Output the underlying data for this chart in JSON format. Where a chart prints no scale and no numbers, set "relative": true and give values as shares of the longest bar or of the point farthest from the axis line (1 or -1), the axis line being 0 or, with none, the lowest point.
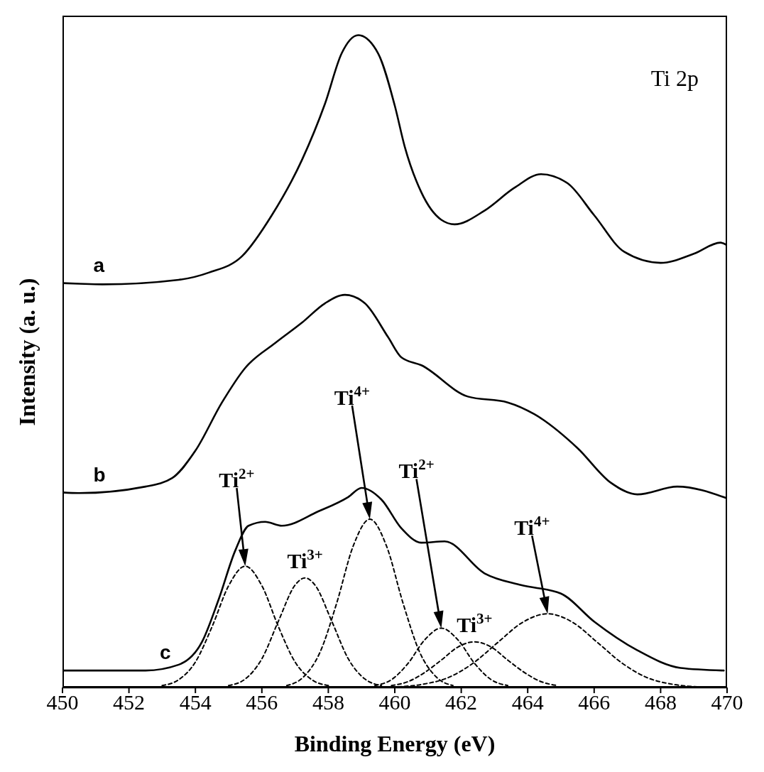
{
  "chart_data": {
    "type": "line",
    "relative": true,
    "xlabel": "Binding Energy (eV)",
    "ylabel": "Intensity (a. u.)",
    "xlim": [
      450,
      470
    ],
    "xticks": [
      450,
      452,
      454,
      456,
      458,
      460,
      462,
      464,
      466,
      468,
      470
    ],
    "marker": "none",
    "annotations": [
      "Ti 2p",
      "Ti$^{2+}$",
      {
        "text": "Ti$^{3+}$",
        "x": 457.3,
        "y": 0.168
      },
      "Ti$^{4+}$",
      "Ti$^{2+}$",
      {
        "text": "Ti$^{3+}$",
        "x": 462.4,
        "y": 0.07
      },
      "Ti$^{4+}$"
    ],
    "series": [
      {
        "name": "a",
        "color": "#000000",
        "x": [
          450,
          450.5,
          451.2,
          453.5,
          454.4,
          455.4,
          456.3,
          457.2,
          457.9,
          458.4,
          458.9,
          459.5,
          460.0,
          460.3,
          460.8,
          461.4,
          461.8,
          462.7,
          463.6,
          464.4,
          465.2,
          466.0,
          466.9,
          468.0,
          469.0,
          469.8,
          470.0
        ],
        "values": [
          0.62,
          0.619,
          0.618,
          0.625,
          0.636,
          0.661,
          0.724,
          0.808,
          0.895,
          0.972,
          1.0,
          0.972,
          0.892,
          0.829,
          0.759,
          0.717,
          0.71,
          0.731,
          0.766,
          0.787,
          0.773,
          0.724,
          0.668,
          0.651,
          0.665,
          0.682,
          0.678
        ]
      },
      {
        "name": "b",
        "color": "#000000",
        "x": [
          450,
          450.5,
          452.5,
          453.3,
          454.0,
          454.8,
          455.5,
          456.4,
          457.2,
          457.9,
          458.5,
          459.1,
          459.8,
          460.2,
          460.8,
          462.2,
          463.4,
          464.2,
          465.5,
          466.5,
          467.3,
          468.5,
          470.0
        ],
        "values": [
          0.299,
          0.298,
          0.308,
          0.321,
          0.363,
          0.437,
          0.49,
          0.528,
          0.559,
          0.589,
          0.602,
          0.589,
          0.537,
          0.506,
          0.494,
          0.446,
          0.437,
          0.419,
          0.367,
          0.314,
          0.296,
          0.308,
          0.29
        ]
      },
      {
        "name": "c",
        "color": "#000000",
        "x": [
          450,
          452.5,
          453.5,
          454.2,
          454.7,
          455.2,
          455.6,
          456.1,
          456.6,
          457.7,
          458.6,
          459.0,
          459.6,
          460.2,
          460.8,
          461.5,
          462.7,
          463.8,
          465.0,
          466.0,
          467.3,
          468.6,
          469.9
        ],
        "values": [
          0.026,
          0.026,
          0.035,
          0.07,
          0.135,
          0.21,
          0.248,
          0.254,
          0.248,
          0.27,
          0.292,
          0.306,
          0.288,
          0.244,
          0.222,
          0.224,
          0.175,
          0.157,
          0.144,
          0.101,
          0.057,
          0.03,
          0.026
        ]
      },
      {
        "color": "#000000",
        "line_style": "dashed",
        "x": [
          453.0,
          453.5,
          454.0,
          454.5,
          455.0,
          455.5,
          456.0,
          456.5,
          457.0,
          457.5,
          458.0
        ],
        "values": [
          0.003,
          0.012,
          0.039,
          0.093,
          0.156,
          0.186,
          0.156,
          0.093,
          0.039,
          0.012,
          0.003
        ]
      },
      {
        "color": "#000000",
        "line_style": "dashed",
        "x": [
          455.0,
          455.5,
          456.0,
          456.5,
          457.0,
          457.3,
          457.6,
          458.1,
          458.6,
          459.1,
          459.6
        ],
        "values": [
          0.003,
          0.013,
          0.044,
          0.102,
          0.157,
          0.168,
          0.157,
          0.102,
          0.044,
          0.013,
          0.003
        ]
      },
      {
        "color": "#000000",
        "line_style": "dashed",
        "x": [
          456.75,
          457.25,
          457.75,
          458.25,
          458.75,
          459.25,
          459.75,
          460.25,
          460.75,
          461.25,
          461.75
        ],
        "values": [
          0.003,
          0.016,
          0.054,
          0.129,
          0.217,
          0.258,
          0.217,
          0.129,
          0.054,
          0.016,
          0.003
        ]
      },
      {
        "color": "#000000",
        "line_style": "dashed",
        "x": [
          459.4,
          459.9,
          460.4,
          460.9,
          461.4,
          461.9,
          462.4,
          462.9,
          463.4
        ],
        "values": [
          0.003,
          0.012,
          0.037,
          0.073,
          0.091,
          0.073,
          0.037,
          0.012,
          0.003
        ]
      },
      {
        "color": "#000000",
        "line_style": "dashed",
        "x": [
          459.9,
          460.4,
          460.9,
          461.4,
          461.9,
          462.4,
          462.9,
          463.4,
          463.9,
          464.4,
          464.9
        ],
        "values": [
          0.003,
          0.009,
          0.023,
          0.042,
          0.062,
          0.07,
          0.062,
          0.042,
          0.023,
          0.009,
          0.003
        ]
      },
      {
        "color": "#000000",
        "line_style": "dashed",
        "x": [
          460.1,
          460.85,
          461.6,
          462.35,
          463.1,
          463.85,
          464.6,
          465.35,
          466.1,
          466.85,
          467.6,
          468.35,
          469.1
        ],
        "values": [
          0.001,
          0.005,
          0.015,
          0.037,
          0.069,
          0.1,
          0.113,
          0.1,
          0.069,
          0.037,
          0.015,
          0.005,
          0.001
        ]
      }
    ]
  }
}
